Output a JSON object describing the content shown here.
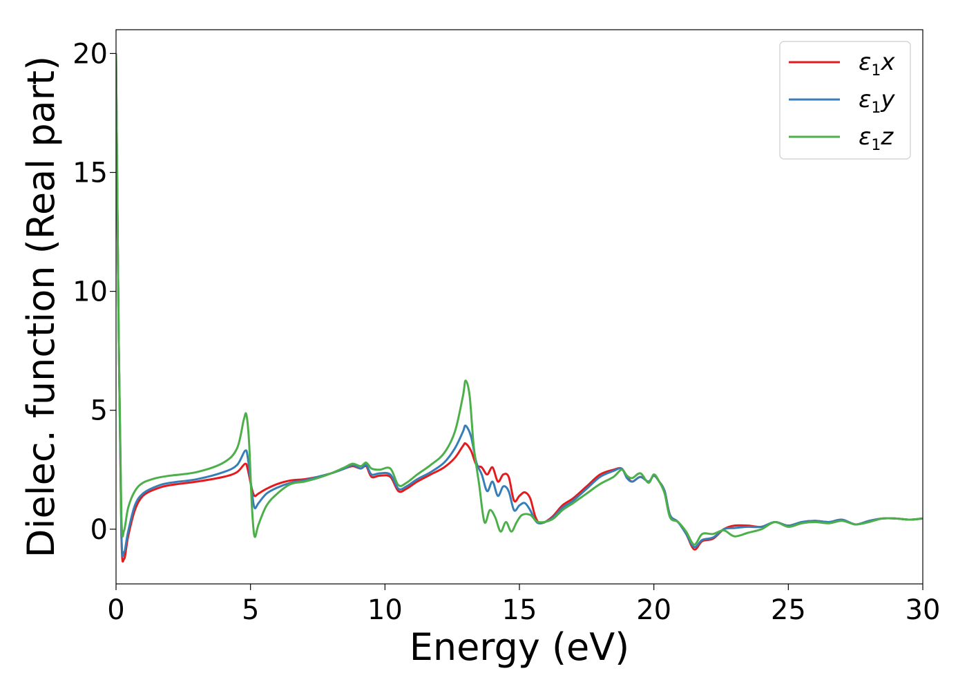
{
  "chart_data": {
    "type": "line",
    "xlabel": "Energy (eV)",
    "ylabel": "Dielec. function (Real part)",
    "xlim": [
      0,
      30
    ],
    "ylim": [
      -2.3,
      21
    ],
    "xticks": [
      "0",
      "5",
      "10",
      "15",
      "20",
      "25",
      "30"
    ],
    "yticks": [
      "0",
      "5",
      "10",
      "15",
      "20"
    ],
    "grid": false,
    "legend_position": "top-right",
    "series": [
      {
        "name": "ε1x",
        "legend_symbol": "ε",
        "legend_sub": "1",
        "legend_var": "x",
        "color": "#e41a1c",
        "points": [
          [
            0,
            20
          ],
          [
            0.1,
            8
          ],
          [
            0.2,
            -0.3
          ],
          [
            0.3,
            -1.25
          ],
          [
            0.45,
            -0.3
          ],
          [
            0.7,
            0.8
          ],
          [
            1.0,
            1.4
          ],
          [
            1.5,
            1.7
          ],
          [
            2,
            1.85
          ],
          [
            3,
            2.0
          ],
          [
            4,
            2.2
          ],
          [
            4.5,
            2.4
          ],
          [
            4.8,
            2.75
          ],
          [
            4.9,
            2.5
          ],
          [
            5.05,
            1.7
          ],
          [
            5.15,
            1.4
          ],
          [
            5.3,
            1.5
          ],
          [
            5.6,
            1.7
          ],
          [
            6,
            1.9
          ],
          [
            6.5,
            2.05
          ],
          [
            7,
            2.1
          ],
          [
            7.5,
            2.2
          ],
          [
            8,
            2.35
          ],
          [
            8.5,
            2.55
          ],
          [
            8.8,
            2.65
          ],
          [
            9.1,
            2.55
          ],
          [
            9.3,
            2.65
          ],
          [
            9.5,
            2.2
          ],
          [
            9.8,
            2.25
          ],
          [
            10.2,
            2.2
          ],
          [
            10.5,
            1.6
          ],
          [
            10.8,
            1.7
          ],
          [
            11.2,
            2.0
          ],
          [
            11.7,
            2.3
          ],
          [
            12.2,
            2.6
          ],
          [
            12.6,
            3.0
          ],
          [
            12.9,
            3.5
          ],
          [
            13.0,
            3.6
          ],
          [
            13.2,
            3.3
          ],
          [
            13.4,
            2.7
          ],
          [
            13.6,
            2.6
          ],
          [
            13.8,
            2.3
          ],
          [
            14.0,
            2.6
          ],
          [
            14.2,
            2.0
          ],
          [
            14.4,
            2.3
          ],
          [
            14.6,
            2.2
          ],
          [
            14.8,
            1.2
          ],
          [
            15.0,
            1.4
          ],
          [
            15.2,
            1.55
          ],
          [
            15.4,
            1.3
          ],
          [
            15.6,
            0.5
          ],
          [
            15.8,
            0.25
          ],
          [
            16.2,
            0.5
          ],
          [
            16.6,
            1.0
          ],
          [
            17,
            1.3
          ],
          [
            17.5,
            1.8
          ],
          [
            18,
            2.3
          ],
          [
            18.5,
            2.5
          ],
          [
            18.8,
            2.55
          ],
          [
            19.0,
            2.2
          ],
          [
            19.2,
            2.0
          ],
          [
            19.5,
            2.2
          ],
          [
            19.8,
            2.0
          ],
          [
            20.0,
            2.25
          ],
          [
            20.2,
            2.0
          ],
          [
            20.4,
            1.6
          ],
          [
            20.6,
            0.6
          ],
          [
            20.9,
            0.3
          ],
          [
            21.2,
            -0.2
          ],
          [
            21.5,
            -0.85
          ],
          [
            21.8,
            -0.5
          ],
          [
            22.2,
            -0.4
          ],
          [
            22.6,
            0.0
          ],
          [
            23.0,
            0.15
          ],
          [
            23.5,
            0.15
          ],
          [
            24,
            0.1
          ],
          [
            24.5,
            0.3
          ],
          [
            25,
            0.15
          ],
          [
            25.5,
            0.3
          ],
          [
            26,
            0.35
          ],
          [
            26.5,
            0.3
          ],
          [
            27,
            0.4
          ],
          [
            27.5,
            0.2
          ],
          [
            28,
            0.35
          ],
          [
            28.5,
            0.45
          ],
          [
            29,
            0.45
          ],
          [
            29.5,
            0.4
          ],
          [
            30,
            0.45
          ]
        ]
      },
      {
        "name": "ε1y",
        "legend_symbol": "ε",
        "legend_sub": "1",
        "legend_var": "y",
        "color": "#377eb8",
        "points": [
          [
            0,
            20
          ],
          [
            0.1,
            8
          ],
          [
            0.2,
            -0.2
          ],
          [
            0.3,
            -0.95
          ],
          [
            0.45,
            -0.1
          ],
          [
            0.7,
            1.0
          ],
          [
            1.0,
            1.5
          ],
          [
            1.5,
            1.8
          ],
          [
            2,
            1.95
          ],
          [
            3,
            2.1
          ],
          [
            4,
            2.4
          ],
          [
            4.5,
            2.7
          ],
          [
            4.8,
            3.3
          ],
          [
            4.9,
            3.0
          ],
          [
            5.05,
            1.6
          ],
          [
            5.15,
            0.9
          ],
          [
            5.3,
            1.1
          ],
          [
            5.6,
            1.5
          ],
          [
            6,
            1.75
          ],
          [
            6.5,
            1.95
          ],
          [
            7,
            2.05
          ],
          [
            7.5,
            2.2
          ],
          [
            8,
            2.35
          ],
          [
            8.5,
            2.55
          ],
          [
            8.8,
            2.7
          ],
          [
            9.1,
            2.55
          ],
          [
            9.3,
            2.7
          ],
          [
            9.5,
            2.3
          ],
          [
            9.8,
            2.35
          ],
          [
            10.2,
            2.3
          ],
          [
            10.5,
            1.7
          ],
          [
            10.8,
            1.8
          ],
          [
            11.2,
            2.1
          ],
          [
            11.7,
            2.4
          ],
          [
            12.2,
            2.8
          ],
          [
            12.6,
            3.4
          ],
          [
            12.9,
            4.1
          ],
          [
            13.0,
            4.35
          ],
          [
            13.2,
            3.9
          ],
          [
            13.4,
            2.8
          ],
          [
            13.6,
            2.3
          ],
          [
            13.8,
            1.6
          ],
          [
            14.0,
            2.0
          ],
          [
            14.2,
            1.4
          ],
          [
            14.4,
            1.8
          ],
          [
            14.6,
            1.6
          ],
          [
            14.8,
            0.8
          ],
          [
            15.0,
            1.0
          ],
          [
            15.2,
            1.1
          ],
          [
            15.4,
            0.8
          ],
          [
            15.6,
            0.35
          ],
          [
            15.8,
            0.25
          ],
          [
            16.2,
            0.45
          ],
          [
            16.6,
            0.9
          ],
          [
            17,
            1.2
          ],
          [
            17.5,
            1.7
          ],
          [
            18,
            2.2
          ],
          [
            18.5,
            2.45
          ],
          [
            18.8,
            2.55
          ],
          [
            19.0,
            2.15
          ],
          [
            19.2,
            2.0
          ],
          [
            19.5,
            2.2
          ],
          [
            19.8,
            2.0
          ],
          [
            20.0,
            2.25
          ],
          [
            20.2,
            2.0
          ],
          [
            20.4,
            1.6
          ],
          [
            20.6,
            0.6
          ],
          [
            20.9,
            0.3
          ],
          [
            21.2,
            -0.2
          ],
          [
            21.5,
            -0.75
          ],
          [
            21.8,
            -0.45
          ],
          [
            22.2,
            -0.35
          ],
          [
            22.6,
            0.0
          ],
          [
            23.0,
            0.05
          ],
          [
            23.5,
            0.1
          ],
          [
            24,
            0.1
          ],
          [
            24.5,
            0.3
          ],
          [
            25,
            0.15
          ],
          [
            25.5,
            0.3
          ],
          [
            26,
            0.35
          ],
          [
            26.5,
            0.3
          ],
          [
            27,
            0.4
          ],
          [
            27.5,
            0.2
          ],
          [
            28,
            0.35
          ],
          [
            28.5,
            0.45
          ],
          [
            29,
            0.45
          ],
          [
            29.5,
            0.4
          ],
          [
            30,
            0.45
          ]
        ]
      },
      {
        "name": "ε1z",
        "legend_symbol": "ε",
        "legend_sub": "1",
        "legend_var": "z",
        "color": "#4daf4a",
        "points": [
          [
            0,
            20
          ],
          [
            0.1,
            8
          ],
          [
            0.2,
            0.5
          ],
          [
            0.3,
            -0.05
          ],
          [
            0.45,
            0.9
          ],
          [
            0.7,
            1.6
          ],
          [
            1.0,
            1.95
          ],
          [
            1.5,
            2.15
          ],
          [
            2,
            2.25
          ],
          [
            3,
            2.4
          ],
          [
            4,
            2.8
          ],
          [
            4.5,
            3.4
          ],
          [
            4.75,
            4.6
          ],
          [
            4.85,
            4.8
          ],
          [
            4.95,
            3.6
          ],
          [
            5.05,
            1.0
          ],
          [
            5.15,
            -0.3
          ],
          [
            5.3,
            0.2
          ],
          [
            5.6,
            1.0
          ],
          [
            6,
            1.5
          ],
          [
            6.5,
            1.9
          ],
          [
            7,
            2.0
          ],
          [
            7.5,
            2.15
          ],
          [
            8,
            2.35
          ],
          [
            8.5,
            2.6
          ],
          [
            8.8,
            2.75
          ],
          [
            9.1,
            2.65
          ],
          [
            9.3,
            2.8
          ],
          [
            9.5,
            2.55
          ],
          [
            9.8,
            2.5
          ],
          [
            10.2,
            2.55
          ],
          [
            10.5,
            1.85
          ],
          [
            10.8,
            1.95
          ],
          [
            11.2,
            2.3
          ],
          [
            11.7,
            2.7
          ],
          [
            12.2,
            3.2
          ],
          [
            12.6,
            4.1
          ],
          [
            12.9,
            5.6
          ],
          [
            13.0,
            6.25
          ],
          [
            13.15,
            5.6
          ],
          [
            13.3,
            3.5
          ],
          [
            13.5,
            1.9
          ],
          [
            13.7,
            0.3
          ],
          [
            13.9,
            0.8
          ],
          [
            14.1,
            0.5
          ],
          [
            14.3,
            -0.1
          ],
          [
            14.5,
            0.3
          ],
          [
            14.7,
            -0.1
          ],
          [
            14.9,
            0.3
          ],
          [
            15.1,
            0.6
          ],
          [
            15.4,
            0.6
          ],
          [
            15.7,
            0.3
          ],
          [
            16.2,
            0.4
          ],
          [
            16.6,
            0.8
          ],
          [
            17,
            1.1
          ],
          [
            17.5,
            1.5
          ],
          [
            18,
            1.9
          ],
          [
            18.5,
            2.2
          ],
          [
            18.8,
            2.5
          ],
          [
            19.0,
            2.25
          ],
          [
            19.2,
            2.15
          ],
          [
            19.5,
            2.35
          ],
          [
            19.8,
            1.95
          ],
          [
            20.0,
            2.3
          ],
          [
            20.2,
            2.0
          ],
          [
            20.4,
            1.5
          ],
          [
            20.6,
            0.5
          ],
          [
            20.9,
            0.3
          ],
          [
            21.2,
            -0.1
          ],
          [
            21.5,
            -0.65
          ],
          [
            21.8,
            -0.2
          ],
          [
            22.2,
            -0.2
          ],
          [
            22.6,
            -0.05
          ],
          [
            23.0,
            -0.3
          ],
          [
            23.5,
            -0.15
          ],
          [
            24,
            0.0
          ],
          [
            24.5,
            0.3
          ],
          [
            25,
            0.1
          ],
          [
            25.5,
            0.25
          ],
          [
            26,
            0.3
          ],
          [
            26.5,
            0.25
          ],
          [
            27,
            0.35
          ],
          [
            27.5,
            0.2
          ],
          [
            28,
            0.3
          ],
          [
            28.5,
            0.45
          ],
          [
            29,
            0.45
          ],
          [
            29.5,
            0.4
          ],
          [
            30,
            0.45
          ]
        ]
      }
    ]
  }
}
